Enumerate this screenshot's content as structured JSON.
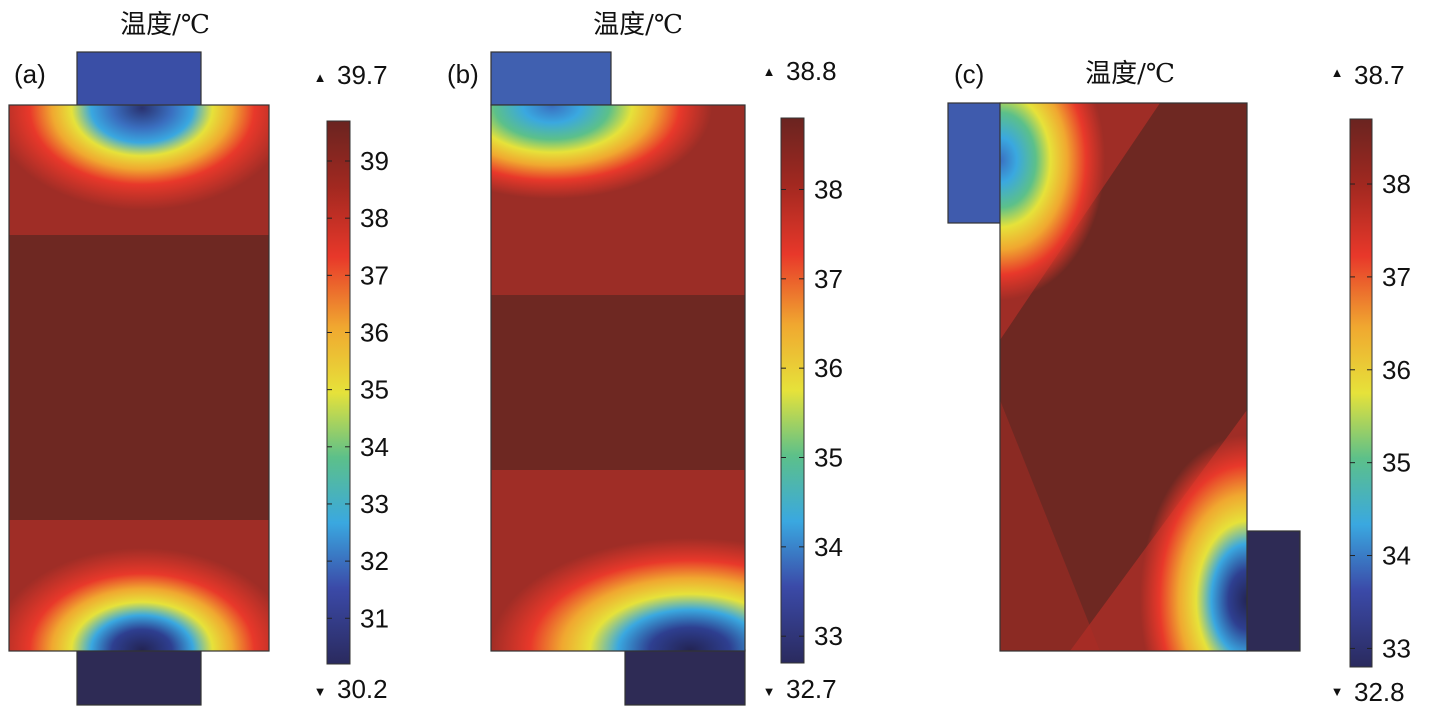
{
  "figure": {
    "panels": [
      {
        "id": "a",
        "panel_label": "(a)",
        "title": "温度/℃",
        "max_marker": "▲",
        "min_marker": "▼",
        "max_label": "39.7",
        "min_label": "30.2",
        "range": [
          30.2,
          39.7
        ],
        "ticks": [
          39,
          38,
          37,
          36,
          35,
          34,
          33,
          32,
          31
        ],
        "tab_positions": [
          "top-center",
          "bottom-center"
        ]
      },
      {
        "id": "b",
        "panel_label": "(b)",
        "title": "温度/℃",
        "max_marker": "▲",
        "min_marker": "▼",
        "max_label": "38.8",
        "min_label": "32.7",
        "range": [
          32.7,
          38.8
        ],
        "ticks": [
          38,
          37,
          36,
          35,
          34,
          33
        ],
        "tab_positions": [
          "top-left",
          "bottom-right"
        ]
      },
      {
        "id": "c",
        "panel_label": "(c)",
        "title": "温度/℃",
        "max_marker": "▲",
        "min_marker": "▼",
        "max_label": "38.7",
        "min_label": "32.8",
        "range": [
          32.8,
          38.7
        ],
        "ticks": [
          38,
          37,
          36,
          35,
          34,
          33
        ],
        "tab_positions": [
          "left-top",
          "right-bottom"
        ]
      }
    ],
    "colormap": [
      "#2a2a5e",
      "#3b4aa8",
      "#3aa8e0",
      "#5cc08a",
      "#e6e23a",
      "#f0a830",
      "#e8382a",
      "#a12820",
      "#6a2420"
    ]
  }
}
